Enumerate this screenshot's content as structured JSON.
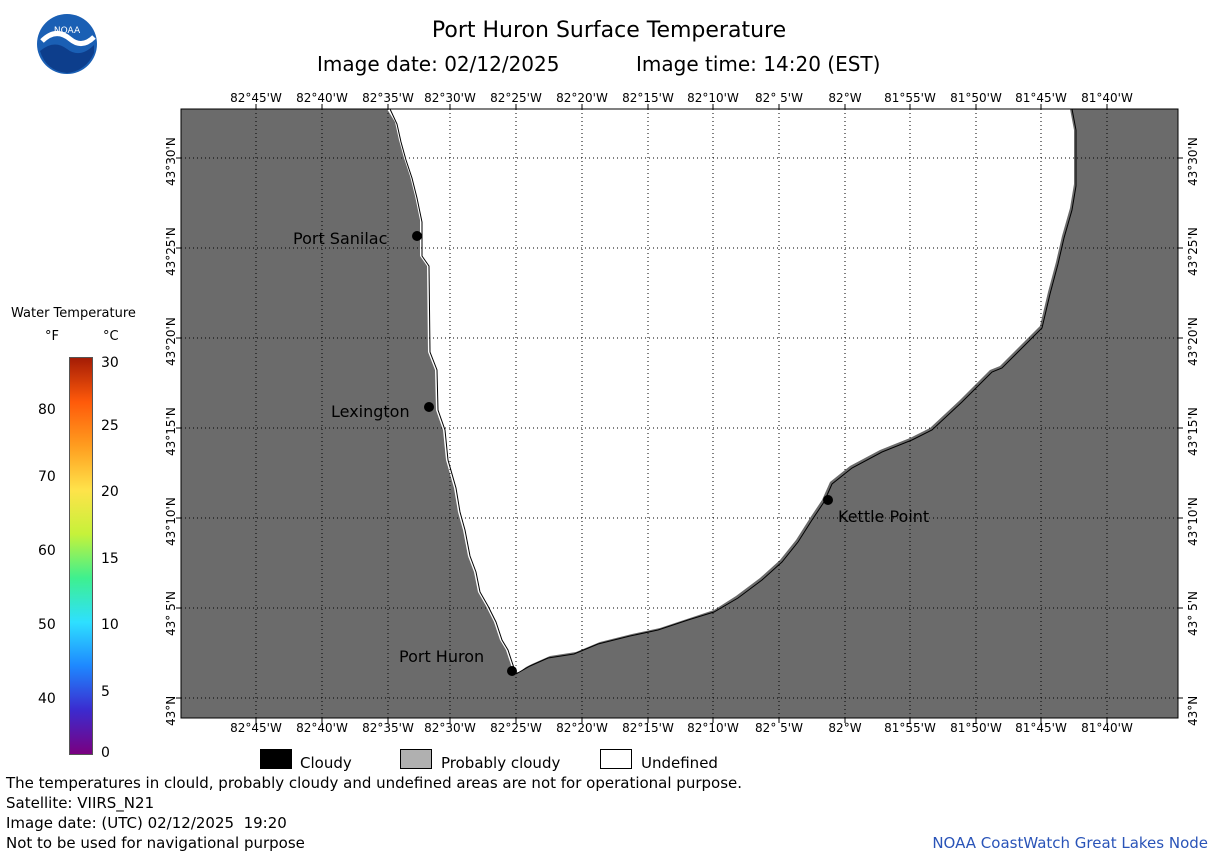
{
  "header": {
    "title": "Port Huron Surface Temperature",
    "image_date_label": "Image date: 02/12/2025",
    "image_time_label": "Image time: 14:20 (EST)"
  },
  "logo": {
    "text": "NOAA",
    "icon": "noaa-logo"
  },
  "legend": {
    "title": "Water Temperature",
    "unit_f": "°F",
    "unit_c": "°C",
    "fahrenheit_ticks": [
      "80",
      "70",
      "60",
      "50",
      "40"
    ],
    "celsius_ticks": [
      "30",
      "25",
      "20",
      "15",
      "10",
      "5",
      "0"
    ],
    "colors": [
      "#7a0080",
      "#3b2bcf",
      "#1e88ff",
      "#2ee0ff",
      "#3ef08f",
      "#c6f23a",
      "#ffe34a",
      "#ff9d1f",
      "#ff5a0a",
      "#a41c06"
    ]
  },
  "map": {
    "land_color": "#6b6b6b",
    "water_color": "#ffffff",
    "lon_labels": [
      "82°45'W",
      "82°40'W",
      "82°35'W",
      "82°30'W",
      "82°25'W",
      "82°20'W",
      "82°15'W",
      "82°10'W",
      "82° 5'W",
      "82°W",
      "81°55'W",
      "81°50'W",
      "81°45'W",
      "81°40'W"
    ],
    "lat_labels": [
      "43°30'N",
      "43°25'N",
      "43°20'N",
      "43°15'N",
      "43°10'N",
      "43° 5'N",
      "43°N"
    ],
    "places": [
      {
        "name": "Port Sanilac"
      },
      {
        "name": "Lexington"
      },
      {
        "name": "Kettle Point"
      },
      {
        "name": "Port Huron"
      }
    ]
  },
  "key": {
    "cloudy": "Cloudy",
    "probably_cloudy": "Probably cloudy",
    "undefined": "Undefined"
  },
  "footer": {
    "disclaimer": "The temperatures in clould, probably cloudy and undefined areas are not for operational purpose.",
    "satellite": "Satellite: VIIRS_N21",
    "utc_date": "Image date: (UTC) 02/12/2025  19:20",
    "nav_warning": "Not to be used for navigational purpose",
    "credit": "NOAA CoastWatch Great Lakes Node"
  }
}
